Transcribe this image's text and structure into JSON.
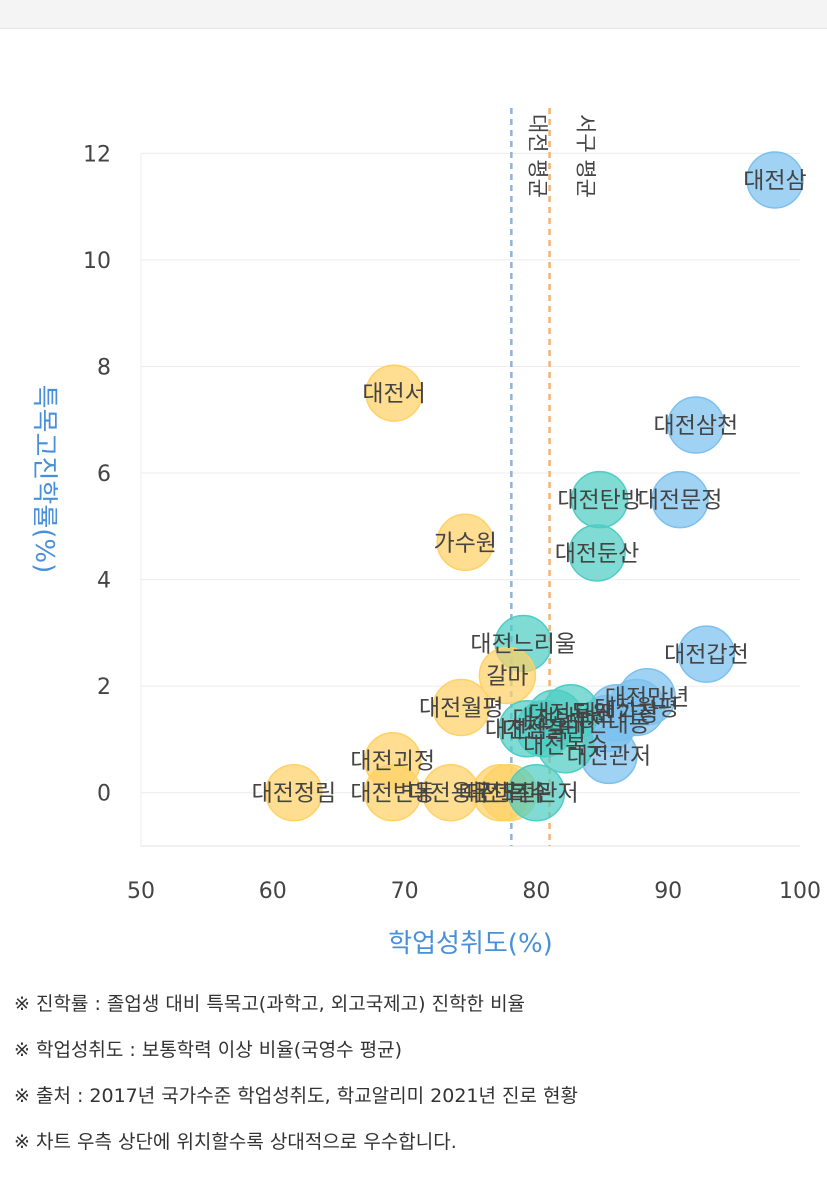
{
  "chart_data": {
    "type": "scatter",
    "xlabel": "학업성취도(%)",
    "ylabel": "특목고진학률(%)",
    "xlim": [
      50,
      100
    ],
    "ylim": [
      -1,
      12.4
    ],
    "x_ticks": [
      50,
      60,
      70,
      80,
      90,
      100
    ],
    "y_ticks": [
      0,
      2,
      4,
      6,
      8,
      10,
      12
    ],
    "grid": true,
    "legend": "none",
    "colors": {
      "blue": "#7cc0ee",
      "teal": "#4ecdc4",
      "yellow": "#ffd166"
    },
    "reference_lines": [
      {
        "x": 78.1,
        "color": "#8fb3d9",
        "label": "대전 평균"
      },
      {
        "x": 81.0,
        "color": "#f4b471",
        "label": "서구 평균"
      }
    ],
    "points": [
      {
        "label": "대전삼",
        "x": 98.1,
        "y": 11.5,
        "color": "blue"
      },
      {
        "label": "대전삼천",
        "x": 92.1,
        "y": 6.9,
        "color": "blue"
      },
      {
        "label": "대전문정",
        "x": 90.9,
        "y": 5.5,
        "color": "blue"
      },
      {
        "label": "대전갑천",
        "x": 92.9,
        "y": 2.6,
        "color": "blue"
      },
      {
        "label": "대전탄방",
        "x": 84.8,
        "y": 5.5,
        "color": "teal"
      },
      {
        "label": "대전둔산",
        "x": 84.6,
        "y": 4.5,
        "color": "teal"
      },
      {
        "label": "대전느리울",
        "x": 79.0,
        "y": 2.8,
        "color": "teal"
      },
      {
        "label": "대전서",
        "x": 69.2,
        "y": 7.5,
        "color": "yellow"
      },
      {
        "label": "가수원",
        "x": 74.6,
        "y": 4.7,
        "color": "yellow"
      },
      {
        "label": "갈마",
        "x": 77.8,
        "y": 2.2,
        "color": "yellow"
      },
      {
        "label": "대전월평",
        "x": 74.3,
        "y": 1.6,
        "color": "yellow"
      },
      {
        "label": "대전괴정",
        "x": 69.1,
        "y": 0.6,
        "color": "yellow"
      },
      {
        "label": "대전정림",
        "x": 61.6,
        "y": 0.0,
        "color": "yellow"
      },
      {
        "label": "대전변동",
        "x": 69.1,
        "y": 0.0,
        "color": "yellow"
      },
      {
        "label": "대전용문",
        "x": 73.5,
        "y": 0.0,
        "color": "yellow"
      },
      {
        "label": "대전도마",
        "x": 77.3,
        "y": 0.0,
        "color": "yellow"
      },
      {
        "label": "대전복수",
        "x": 77.9,
        "y": 0.0,
        "color": "yellow"
      },
      {
        "label": "대전관저",
        "x": 80.0,
        "y": 0.0,
        "color": "teal"
      },
      {
        "label": "대전만년",
        "x": 88.4,
        "y": 1.8,
        "color": "blue"
      },
      {
        "label": "대전월평",
        "x": 87.6,
        "y": 1.6,
        "color": "blue"
      },
      {
        "label": "대전가장",
        "x": 86.1,
        "y": 1.5,
        "color": "blue"
      },
      {
        "label": "대전내동",
        "x": 85.4,
        "y": 1.3,
        "color": "blue"
      },
      {
        "label": "대전관저",
        "x": 85.5,
        "y": 0.7,
        "color": "blue"
      },
      {
        "label": "대전둔원",
        "x": 82.6,
        "y": 1.5,
        "color": "teal"
      },
      {
        "label": "대전탄방",
        "x": 81.4,
        "y": 1.4,
        "color": "teal"
      },
      {
        "label": "대전갈마",
        "x": 80.6,
        "y": 1.2,
        "color": "teal"
      },
      {
        "label": "대전삼육",
        "x": 79.3,
        "y": 1.2,
        "color": "teal"
      },
      {
        "label": "대전복수",
        "x": 82.2,
        "y": 0.9,
        "color": "teal"
      }
    ]
  },
  "notes": [
    "※ 진학률 : 졸업생 대비 특목고(과학고, 외고국제고) 진학한 비율",
    "※ 학업성취도 : 보통학력 이상 비율(국영수 평균)",
    "※ 출처 : 2017년 국가수준 학업성취도, 학교알리미 2021년 진로 현황",
    "※ 차트 우측 상단에 위치할수록 상대적으로 우수합니다."
  ]
}
